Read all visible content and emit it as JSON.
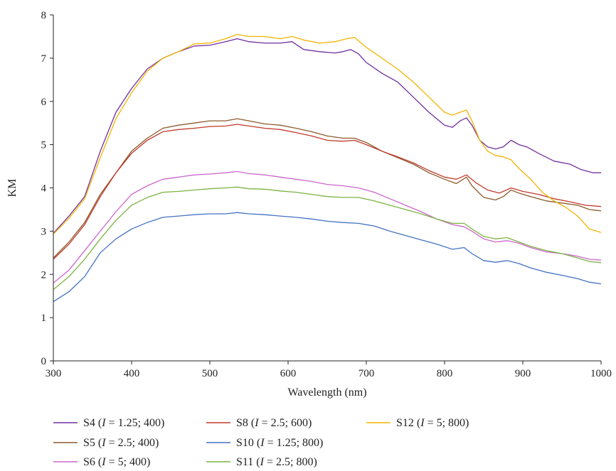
{
  "chart_data": {
    "type": "line",
    "xlabel": "Wavelength (nm)",
    "ylabel": "KM",
    "xlim": [
      300,
      1000
    ],
    "ylim": [
      0,
      8
    ],
    "xticks": [
      300,
      400,
      500,
      600,
      700,
      800,
      900,
      1000
    ],
    "yticks": [
      0,
      1,
      2,
      3,
      4,
      5,
      6,
      7,
      8
    ],
    "grid": false,
    "legend_position": "bottom",
    "series": [
      {
        "name_parts": [
          "S4 (",
          "I",
          " = 1.25; 400)"
        ],
        "color": "#7030A0",
        "points": [
          [
            300,
            2.95
          ],
          [
            320,
            3.35
          ],
          [
            340,
            3.8
          ],
          [
            360,
            4.85
          ],
          [
            380,
            5.75
          ],
          [
            400,
            6.3
          ],
          [
            420,
            6.75
          ],
          [
            440,
            7.0
          ],
          [
            460,
            7.15
          ],
          [
            480,
            7.28
          ],
          [
            500,
            7.3
          ],
          [
            520,
            7.38
          ],
          [
            535,
            7.45
          ],
          [
            550,
            7.38
          ],
          [
            570,
            7.35
          ],
          [
            590,
            7.35
          ],
          [
            605,
            7.38
          ],
          [
            620,
            7.2
          ],
          [
            640,
            7.15
          ],
          [
            660,
            7.12
          ],
          [
            670,
            7.15
          ],
          [
            680,
            7.2
          ],
          [
            690,
            7.1
          ],
          [
            700,
            6.9
          ],
          [
            720,
            6.65
          ],
          [
            740,
            6.45
          ],
          [
            760,
            6.1
          ],
          [
            780,
            5.75
          ],
          [
            800,
            5.45
          ],
          [
            810,
            5.4
          ],
          [
            820,
            5.55
          ],
          [
            828,
            5.62
          ],
          [
            835,
            5.45
          ],
          [
            845,
            5.1
          ],
          [
            855,
            4.95
          ],
          [
            865,
            4.9
          ],
          [
            875,
            4.95
          ],
          [
            885,
            5.1
          ],
          [
            895,
            5.0
          ],
          [
            905,
            4.95
          ],
          [
            920,
            4.8
          ],
          [
            940,
            4.62
          ],
          [
            960,
            4.55
          ],
          [
            975,
            4.42
          ],
          [
            990,
            4.35
          ],
          [
            1000,
            4.35
          ]
        ]
      },
      {
        "name_parts": [
          "S5 (",
          "I",
          " = 2.5; 400)"
        ],
        "color": "#8B5A2B",
        "points": [
          [
            300,
            2.38
          ],
          [
            320,
            2.75
          ],
          [
            340,
            3.2
          ],
          [
            360,
            3.85
          ],
          [
            380,
            4.35
          ],
          [
            400,
            4.85
          ],
          [
            420,
            5.15
          ],
          [
            440,
            5.38
          ],
          [
            460,
            5.45
          ],
          [
            480,
            5.5
          ],
          [
            500,
            5.55
          ],
          [
            520,
            5.55
          ],
          [
            535,
            5.6
          ],
          [
            550,
            5.55
          ],
          [
            570,
            5.48
          ],
          [
            590,
            5.45
          ],
          [
            610,
            5.38
          ],
          [
            630,
            5.3
          ],
          [
            650,
            5.2
          ],
          [
            670,
            5.15
          ],
          [
            685,
            5.15
          ],
          [
            700,
            5.05
          ],
          [
            720,
            4.85
          ],
          [
            740,
            4.7
          ],
          [
            760,
            4.55
          ],
          [
            780,
            4.35
          ],
          [
            800,
            4.2
          ],
          [
            815,
            4.1
          ],
          [
            828,
            4.25
          ],
          [
            835,
            4.05
          ],
          [
            850,
            3.78
          ],
          [
            865,
            3.72
          ],
          [
            875,
            3.8
          ],
          [
            885,
            3.95
          ],
          [
            895,
            3.88
          ],
          [
            910,
            3.8
          ],
          [
            930,
            3.7
          ],
          [
            950,
            3.65
          ],
          [
            970,
            3.6
          ],
          [
            985,
            3.5
          ],
          [
            1000,
            3.47
          ]
        ]
      },
      {
        "name_parts": [
          "S6 (",
          "I",
          " = 5; 400)"
        ],
        "color": "#CC66CC",
        "points": [
          [
            300,
            1.8
          ],
          [
            320,
            2.1
          ],
          [
            340,
            2.55
          ],
          [
            360,
            3.0
          ],
          [
            380,
            3.45
          ],
          [
            400,
            3.85
          ],
          [
            420,
            4.05
          ],
          [
            440,
            4.2
          ],
          [
            460,
            4.25
          ],
          [
            480,
            4.3
          ],
          [
            500,
            4.32
          ],
          [
            520,
            4.35
          ],
          [
            535,
            4.38
          ],
          [
            550,
            4.33
          ],
          [
            570,
            4.3
          ],
          [
            590,
            4.25
          ],
          [
            610,
            4.2
          ],
          [
            630,
            4.15
          ],
          [
            650,
            4.08
          ],
          [
            670,
            4.05
          ],
          [
            690,
            4.0
          ],
          [
            710,
            3.9
          ],
          [
            730,
            3.75
          ],
          [
            750,
            3.6
          ],
          [
            770,
            3.45
          ],
          [
            790,
            3.28
          ],
          [
            810,
            3.15
          ],
          [
            825,
            3.1
          ],
          [
            835,
            3.0
          ],
          [
            850,
            2.82
          ],
          [
            865,
            2.75
          ],
          [
            880,
            2.78
          ],
          [
            895,
            2.72
          ],
          [
            910,
            2.62
          ],
          [
            930,
            2.52
          ],
          [
            950,
            2.48
          ],
          [
            970,
            2.42
          ],
          [
            985,
            2.35
          ],
          [
            1000,
            2.33
          ]
        ]
      },
      {
        "name_parts": [
          "S8 (",
          "I",
          " = 2.5; 600)"
        ],
        "color": "#C0392B",
        "points": [
          [
            300,
            2.35
          ],
          [
            320,
            2.7
          ],
          [
            340,
            3.15
          ],
          [
            360,
            3.8
          ],
          [
            380,
            4.35
          ],
          [
            400,
            4.8
          ],
          [
            420,
            5.1
          ],
          [
            440,
            5.3
          ],
          [
            460,
            5.35
          ],
          [
            480,
            5.38
          ],
          [
            500,
            5.42
          ],
          [
            520,
            5.43
          ],
          [
            535,
            5.47
          ],
          [
            550,
            5.43
          ],
          [
            570,
            5.38
          ],
          [
            590,
            5.35
          ],
          [
            610,
            5.28
          ],
          [
            630,
            5.2
          ],
          [
            650,
            5.1
          ],
          [
            670,
            5.08
          ],
          [
            685,
            5.1
          ],
          [
            700,
            5.0
          ],
          [
            720,
            4.85
          ],
          [
            740,
            4.72
          ],
          [
            760,
            4.58
          ],
          [
            780,
            4.4
          ],
          [
            800,
            4.25
          ],
          [
            815,
            4.2
          ],
          [
            828,
            4.3
          ],
          [
            840,
            4.12
          ],
          [
            855,
            3.95
          ],
          [
            870,
            3.88
          ],
          [
            885,
            4.0
          ],
          [
            900,
            3.92
          ],
          [
            920,
            3.85
          ],
          [
            940,
            3.75
          ],
          [
            960,
            3.68
          ],
          [
            980,
            3.6
          ],
          [
            1000,
            3.57
          ]
        ]
      },
      {
        "name_parts": [
          "S10 (",
          "I",
          " = 1.25; 800)"
        ],
        "color": "#4472C4",
        "points": [
          [
            300,
            1.37
          ],
          [
            320,
            1.6
          ],
          [
            340,
            1.95
          ],
          [
            360,
            2.5
          ],
          [
            380,
            2.82
          ],
          [
            400,
            3.05
          ],
          [
            420,
            3.2
          ],
          [
            440,
            3.32
          ],
          [
            460,
            3.35
          ],
          [
            480,
            3.38
          ],
          [
            500,
            3.4
          ],
          [
            520,
            3.4
          ],
          [
            535,
            3.43
          ],
          [
            550,
            3.4
          ],
          [
            570,
            3.38
          ],
          [
            590,
            3.35
          ],
          [
            610,
            3.32
          ],
          [
            630,
            3.28
          ],
          [
            650,
            3.23
          ],
          [
            670,
            3.2
          ],
          [
            690,
            3.18
          ],
          [
            710,
            3.12
          ],
          [
            730,
            3.0
          ],
          [
            750,
            2.9
          ],
          [
            770,
            2.8
          ],
          [
            790,
            2.7
          ],
          [
            810,
            2.58
          ],
          [
            825,
            2.62
          ],
          [
            835,
            2.48
          ],
          [
            850,
            2.32
          ],
          [
            865,
            2.28
          ],
          [
            880,
            2.32
          ],
          [
            895,
            2.25
          ],
          [
            910,
            2.15
          ],
          [
            930,
            2.05
          ],
          [
            950,
            1.98
          ],
          [
            970,
            1.9
          ],
          [
            985,
            1.82
          ],
          [
            1000,
            1.78
          ]
        ]
      },
      {
        "name_parts": [
          "S11 (",
          "I",
          " = 2.5; 800)"
        ],
        "color": "#7CB342",
        "points": [
          [
            300,
            1.65
          ],
          [
            320,
            1.95
          ],
          [
            340,
            2.35
          ],
          [
            360,
            2.82
          ],
          [
            380,
            3.25
          ],
          [
            400,
            3.6
          ],
          [
            420,
            3.78
          ],
          [
            440,
            3.9
          ],
          [
            460,
            3.92
          ],
          [
            480,
            3.95
          ],
          [
            500,
            3.98
          ],
          [
            520,
            4.0
          ],
          [
            535,
            4.02
          ],
          [
            550,
            3.98
          ],
          [
            570,
            3.97
          ],
          [
            590,
            3.93
          ],
          [
            610,
            3.9
          ],
          [
            630,
            3.85
          ],
          [
            650,
            3.8
          ],
          [
            670,
            3.78
          ],
          [
            690,
            3.78
          ],
          [
            710,
            3.7
          ],
          [
            730,
            3.6
          ],
          [
            750,
            3.5
          ],
          [
            770,
            3.4
          ],
          [
            790,
            3.28
          ],
          [
            810,
            3.18
          ],
          [
            825,
            3.18
          ],
          [
            835,
            3.05
          ],
          [
            850,
            2.88
          ],
          [
            865,
            2.82
          ],
          [
            880,
            2.85
          ],
          [
            895,
            2.75
          ],
          [
            910,
            2.65
          ],
          [
            930,
            2.55
          ],
          [
            950,
            2.48
          ],
          [
            970,
            2.38
          ],
          [
            985,
            2.3
          ],
          [
            1000,
            2.27
          ]
        ]
      },
      {
        "name_parts": [
          "S12 (",
          "I",
          " = 5; 800)"
        ],
        "color": "#F4B400",
        "points": [
          [
            300,
            2.93
          ],
          [
            320,
            3.3
          ],
          [
            340,
            3.75
          ],
          [
            360,
            4.7
          ],
          [
            380,
            5.6
          ],
          [
            400,
            6.2
          ],
          [
            420,
            6.7
          ],
          [
            440,
            7.0
          ],
          [
            460,
            7.15
          ],
          [
            480,
            7.33
          ],
          [
            500,
            7.35
          ],
          [
            520,
            7.45
          ],
          [
            535,
            7.55
          ],
          [
            550,
            7.5
          ],
          [
            570,
            7.5
          ],
          [
            590,
            7.45
          ],
          [
            605,
            7.5
          ],
          [
            620,
            7.42
          ],
          [
            640,
            7.35
          ],
          [
            660,
            7.38
          ],
          [
            675,
            7.45
          ],
          [
            685,
            7.48
          ],
          [
            700,
            7.25
          ],
          [
            720,
            7.0
          ],
          [
            740,
            6.75
          ],
          [
            760,
            6.45
          ],
          [
            780,
            6.1
          ],
          [
            800,
            5.75
          ],
          [
            810,
            5.68
          ],
          [
            820,
            5.75
          ],
          [
            828,
            5.8
          ],
          [
            835,
            5.55
          ],
          [
            845,
            5.1
          ],
          [
            855,
            4.85
          ],
          [
            865,
            4.75
          ],
          [
            875,
            4.72
          ],
          [
            885,
            4.65
          ],
          [
            895,
            4.45
          ],
          [
            910,
            4.2
          ],
          [
            925,
            3.9
          ],
          [
            940,
            3.7
          ],
          [
            955,
            3.55
          ],
          [
            970,
            3.35
          ],
          [
            985,
            3.05
          ],
          [
            1000,
            2.97
          ]
        ]
      }
    ]
  }
}
